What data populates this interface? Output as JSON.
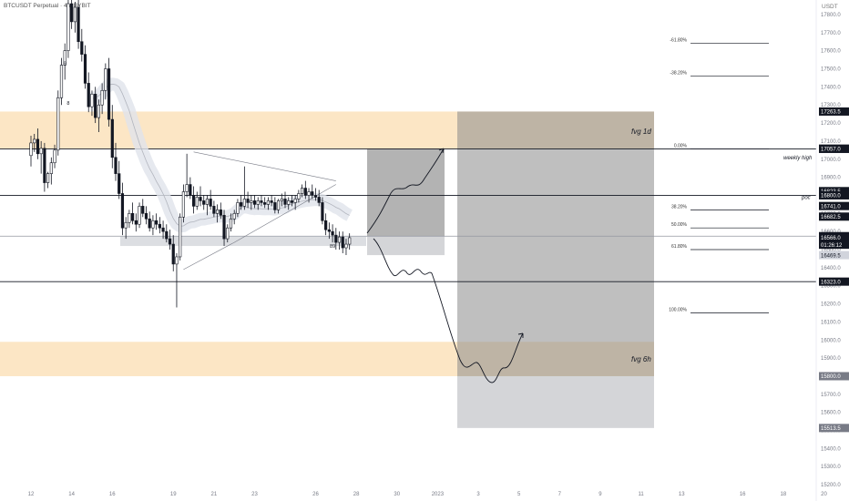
{
  "header": {
    "symbol_line": "BTCUSDT Perpetual · 4h, BYBIT",
    "currency": "USDT"
  },
  "chart_data": {
    "type": "candlestick",
    "y_range": [
      15135,
      17840
    ],
    "y_ticks": [
      15200,
      15300,
      15400,
      15500,
      15600,
      15700,
      15800,
      15900,
      16000,
      16100,
      16200,
      16300,
      16400,
      16500,
      16600,
      16700,
      16800,
      16900,
      17000,
      17100,
      17200,
      17300,
      17400,
      17500,
      17600,
      17700,
      17800
    ],
    "y_tick_labels": [
      "15200.0",
      "15300.0",
      "15400.0",
      "15500.0",
      "15600.0",
      "15700.0",
      "15800.0",
      "15900.0",
      "16000.0",
      "16100.0",
      "16200.0",
      "16300.0",
      "16400.0",
      "16500.0",
      "16600.0",
      "16700.0",
      "16800.0",
      "16900.0",
      "17000.0",
      "17100.0",
      "17200.0",
      "17300.0",
      "17400.0",
      "17500.0",
      "17600.0",
      "17700.0",
      "17800.0"
    ],
    "x_ticks": [
      "12",
      "14",
      "16",
      "19",
      "21",
      "23",
      "26",
      "28",
      "30",
      "2023",
      "3",
      "5",
      "7",
      "9",
      "11",
      "13",
      "16",
      "18",
      "20"
    ],
    "x_tick_index": [
      0,
      12,
      24,
      42,
      54,
      66,
      84,
      96,
      108,
      120,
      132,
      144,
      156,
      168,
      180,
      192,
      210,
      222,
      234
    ],
    "candles": [
      [
        17020,
        17130,
        16960,
        17090
      ],
      [
        17090,
        17140,
        17040,
        17110
      ],
      [
        17110,
        17170,
        17000,
        17030
      ],
      [
        17030,
        17100,
        16920,
        17060
      ],
      [
        17060,
        17090,
        16820,
        16870
      ],
      [
        16870,
        16930,
        16840,
        16920
      ],
      [
        16920,
        17010,
        16860,
        16980
      ],
      [
        16980,
        17080,
        16950,
        17050
      ],
      [
        17050,
        17380,
        17020,
        17340
      ],
      [
        17340,
        17560,
        17300,
        17520
      ],
      [
        17520,
        17640,
        17440,
        17600
      ],
      [
        17600,
        17900,
        17560,
        17860
      ],
      [
        17860,
        17950,
        17720,
        17760
      ],
      [
        17760,
        17870,
        17700,
        17840
      ],
      [
        17840,
        17890,
        17610,
        17650
      ],
      [
        17650,
        17720,
        17540,
        17580
      ],
      [
        17580,
        17630,
        17390,
        17420
      ],
      [
        17420,
        17480,
        17260,
        17290
      ],
      [
        17290,
        17380,
        17240,
        17360
      ],
      [
        17360,
        17400,
        17200,
        17230
      ],
      [
        17230,
        17330,
        17150,
        17300
      ],
      [
        17300,
        17420,
        17250,
        17380
      ],
      [
        17380,
        17530,
        17330,
        17500
      ],
      [
        17500,
        17560,
        17180,
        17220
      ],
      [
        17220,
        17300,
        16950,
        17010
      ],
      [
        17010,
        17090,
        16880,
        16920
      ],
      [
        16920,
        16990,
        16780,
        16810
      ],
      [
        16810,
        16870,
        16580,
        16620
      ],
      [
        16620,
        16680,
        16560,
        16650
      ],
      [
        16650,
        16720,
        16620,
        16700
      ],
      [
        16700,
        16760,
        16640,
        16660
      ],
      [
        16660,
        16700,
        16600,
        16640
      ],
      [
        16640,
        16760,
        16620,
        16740
      ],
      [
        16740,
        16780,
        16680,
        16700
      ],
      [
        16700,
        16740,
        16640,
        16670
      ],
      [
        16670,
        16710,
        16600,
        16620
      ],
      [
        16620,
        16690,
        16580,
        16660
      ],
      [
        16660,
        16700,
        16610,
        16640
      ],
      [
        16640,
        16680,
        16590,
        16620
      ],
      [
        16620,
        16660,
        16560,
        16600
      ],
      [
        16600,
        16640,
        16540,
        16560
      ],
      [
        16560,
        16610,
        16500,
        16530
      ],
      [
        16530,
        16580,
        16380,
        16420
      ],
      [
        16420,
        16480,
        16180,
        16460
      ],
      [
        16460,
        16700,
        16440,
        16680
      ],
      [
        16680,
        16860,
        16650,
        16820
      ],
      [
        16820,
        17030,
        16790,
        16860
      ],
      [
        16860,
        16900,
        16780,
        16800
      ],
      [
        16800,
        16850,
        16700,
        16740
      ],
      [
        16740,
        16820,
        16720,
        16790
      ],
      [
        16790,
        16850,
        16740,
        16770
      ],
      [
        16770,
        16800,
        16720,
        16750
      ],
      [
        16750,
        16800,
        16690,
        16780
      ],
      [
        16780,
        16830,
        16720,
        16740
      ],
      [
        16740,
        16770,
        16680,
        16700
      ],
      [
        16700,
        16750,
        16650,
        16720
      ],
      [
        16720,
        16760,
        16670,
        16690
      ],
      [
        16690,
        16720,
        16520,
        16560
      ],
      [
        16560,
        16640,
        16540,
        16620
      ],
      [
        16620,
        16700,
        16600,
        16670
      ],
      [
        16670,
        16720,
        16640,
        16700
      ],
      [
        16700,
        16780,
        16680,
        16760
      ],
      [
        16760,
        16800,
        16720,
        16740
      ],
      [
        16740,
        16960,
        16720,
        16780
      ],
      [
        16780,
        16820,
        16730,
        16760
      ],
      [
        16760,
        16800,
        16720,
        16770
      ],
      [
        16770,
        16800,
        16730,
        16750
      ],
      [
        16750,
        16790,
        16720,
        16770
      ],
      [
        16770,
        16800,
        16740,
        16760
      ],
      [
        16760,
        16790,
        16730,
        16750
      ],
      [
        16750,
        16790,
        16720,
        16770
      ],
      [
        16770,
        16800,
        16740,
        16760
      ],
      [
        16760,
        16790,
        16700,
        16720
      ],
      [
        16720,
        16780,
        16700,
        16770
      ],
      [
        16770,
        16810,
        16740,
        16780
      ],
      [
        16780,
        16820,
        16730,
        16750
      ],
      [
        16750,
        16790,
        16720,
        16770
      ],
      [
        16770,
        16800,
        16740,
        16760
      ],
      [
        16760,
        16800,
        16720,
        16780
      ],
      [
        16780,
        16830,
        16760,
        16810
      ],
      [
        16810,
        16860,
        16790,
        16840
      ],
      [
        16840,
        16880,
        16780,
        16800
      ],
      [
        16800,
        16840,
        16760,
        16820
      ],
      [
        16820,
        16860,
        16780,
        16800
      ],
      [
        16800,
        16840,
        16770,
        16790
      ],
      [
        16790,
        16830,
        16740,
        16760
      ],
      [
        16760,
        16790,
        16640,
        16660
      ],
      [
        16660,
        16700,
        16580,
        16610
      ],
      [
        16610,
        16650,
        16560,
        16600
      ],
      [
        16600,
        16640,
        16540,
        16580
      ],
      [
        16580,
        16620,
        16500,
        16540
      ],
      [
        16540,
        16600,
        16500,
        16570
      ],
      [
        16570,
        16600,
        16480,
        16510
      ],
      [
        16510,
        16560,
        16470,
        16530
      ],
      [
        16530,
        16590,
        16500,
        16566
      ]
    ],
    "annotations": {
      "fvg_1d": {
        "label": "fvg 1d",
        "top": 17263.5,
        "bottom": 17057.0
      },
      "fvg_6h": {
        "label": "fvg 6h",
        "top": 15990,
        "bottom": 15800.0
      },
      "weekly_high": {
        "label": "weekly high",
        "price": 17058.5
      },
      "poc": {
        "label": "poc",
        "price": 16800.0
      },
      "h_lines": [
        17057.0,
        16800.0,
        16323.0,
        16574.5
      ],
      "fib_levels": [
        {
          "label": "-61.80%",
          "price": 17640
        },
        {
          "label": "-38.20%",
          "price": 17460
        },
        {
          "label": "0.00%",
          "price": 17057.0
        },
        {
          "label": "38.20%",
          "price": 16720
        },
        {
          "label": "50.00%",
          "price": 16620
        },
        {
          "label": "61.80%",
          "price": 16500
        },
        {
          "label": "100.00%",
          "price": 16150
        }
      ],
      "price_tags": [
        {
          "text": "17263.5",
          "price": 17263.5,
          "bg": "#131722"
        },
        {
          "text": "17058.5",
          "price": 17058.5,
          "bg": "#131722"
        },
        {
          "text": "17057.0",
          "price": 17057.0,
          "bg": "#131722"
        },
        {
          "text": "16823.5",
          "price": 16823.5,
          "bg": "#131722"
        },
        {
          "text": "16800.0",
          "price": 16800.0,
          "bg": "#131722"
        },
        {
          "text": "16741.0",
          "price": 16741.0,
          "bg": "#131722"
        },
        {
          "text": "16682.5",
          "price": 16682.5,
          "bg": "#131722"
        },
        {
          "text": "16574.5",
          "price": 16574.5,
          "bg": "#131722"
        },
        {
          "text": "16566.0",
          "price": 16566.0,
          "bg": "#131722"
        },
        {
          "text": "01:26:12",
          "price": 16527,
          "bg": "#131722"
        },
        {
          "text": "16469.5",
          "price": 16469.5,
          "bg": "#d1d4dc",
          "fg": "#131722"
        },
        {
          "text": "16323.0",
          "price": 16323.0,
          "bg": "#131722"
        },
        {
          "text": "15800.0",
          "price": 15800.0,
          "bg": "#787b86"
        },
        {
          "text": "15513.5",
          "price": 15513.5,
          "bg": "#787b86"
        }
      ],
      "bar_count_labels": [
        {
          "text": "9",
          "bar": 10,
          "price": 17520
        },
        {
          "text": "8",
          "bar": 11,
          "price": 17300
        },
        {
          "text": "89",
          "bar": 89,
          "price": 16510
        }
      ]
    },
    "colors": {
      "up": "#131722",
      "down": "#131722",
      "fvg": "#fbe2bb",
      "box_dark": "#8a8a8a",
      "box_light": "#c9cace"
    }
  }
}
